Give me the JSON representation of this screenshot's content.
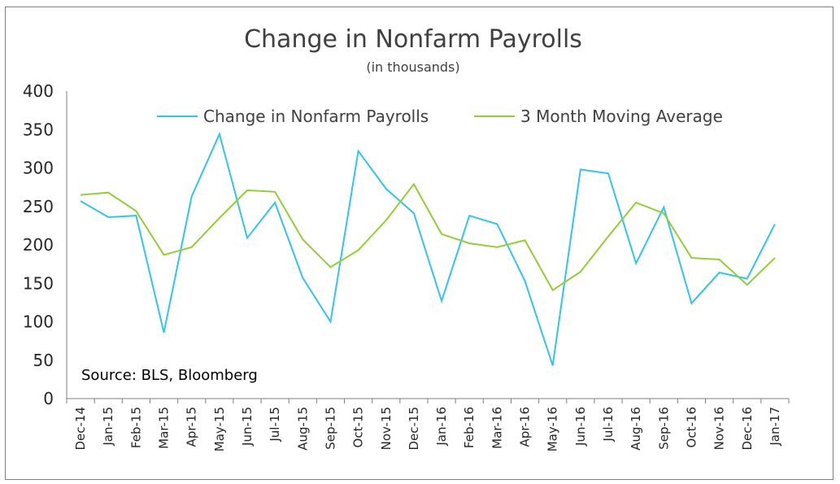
{
  "chart_data": {
    "type": "line",
    "title": "Change in Nonfarm Payrolls",
    "subtitle": "(in thousands)",
    "categories": [
      "Dec-14",
      "Jan-15",
      "Feb-15",
      "Mar-15",
      "Apr-15",
      "May-15",
      "Jun-15",
      "Jul-15",
      "Aug-15",
      "Sep-15",
      "Oct-15",
      "Nov-15",
      "Dec-15",
      "Jan-16",
      "Feb-16",
      "Mar-16",
      "Apr-16",
      "May-16",
      "Jun-16",
      "Jul-16",
      "Aug-16",
      "Sep-16",
      "Oct-16",
      "Nov-16",
      "Dec-16",
      "Jan-17"
    ],
    "series": [
      {
        "name": "Change in Nonfarm Payrolls",
        "color": "#33c4ea",
        "values": [
          257,
          236,
          238,
          86,
          263,
          344,
          209,
          255,
          157,
          100,
          322,
          273,
          241,
          127,
          238,
          227,
          153,
          43,
          298,
          293,
          176,
          249,
          124,
          164,
          156,
          227
        ]
      },
      {
        "name": "3 Month Moving Average",
        "color": "#92cf36",
        "values": [
          265,
          268,
          244,
          187,
          197,
          235,
          271,
          269,
          207,
          171,
          193,
          232,
          279,
          214,
          202,
          197,
          206,
          141,
          165,
          211,
          255,
          241,
          183,
          181,
          148,
          183
        ]
      }
    ],
    "ylim": [
      0,
      400
    ],
    "yticks": [
      "0",
      "50",
      "100",
      "150",
      "200",
      "250",
      "300",
      "350",
      "400"
    ],
    "grid": false,
    "legend_position": "top",
    "annotation": "Source: BLS, Bloomberg"
  }
}
